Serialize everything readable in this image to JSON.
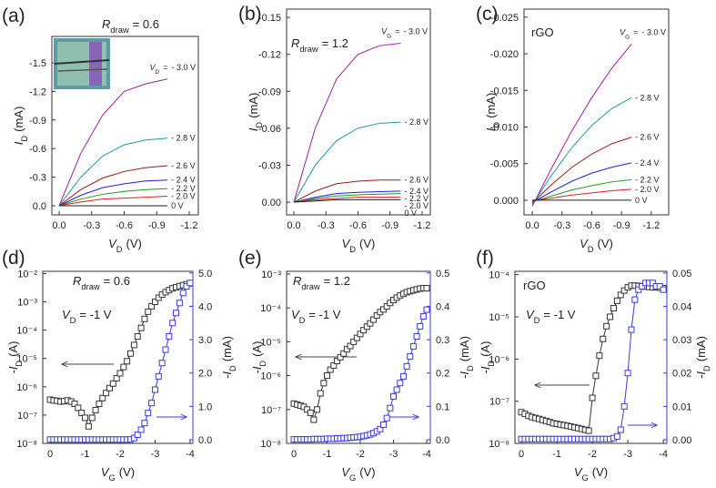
{
  "chart_data": [
    {
      "type": "line",
      "panel_label": "(a)",
      "x_label": {
        "symbol": "V",
        "sub": "D",
        "unit": "(V)"
      },
      "y_label": {
        "symbol": "I",
        "sub": "D",
        "unit": "(mA)"
      },
      "xlim": [
        0.067,
        -1.284
      ],
      "ylim": [
        0.0955,
        -1.777
      ],
      "xticks": [
        {
          "value": 0,
          "label": "0.0"
        },
        -0.3,
        -0.6,
        -0.9,
        -1.2
      ],
      "yticks": [
        {
          "value": 0,
          "label": "0.0"
        },
        -0.3,
        -0.6,
        -0.9,
        -1.2,
        -1.5
      ],
      "annotations": [
        {
          "symbol": "R",
          "sub": "draw",
          "rest": "= 0.6"
        }
      ],
      "curve_label_prefix": {
        "symbol": "V",
        "sub": "D",
        "rest": "="
      },
      "x": [
        0,
        -0.2,
        -0.4,
        -0.6,
        -0.8,
        -1
      ],
      "series": [
        {
          "name": "- 3.0 V",
          "color": "#a21ca2",
          "values": [
            0,
            -0.55,
            -0.95,
            -1.2,
            -1.28,
            -1.33
          ]
        },
        {
          "name": "- 2.8 V",
          "color": "#1f9aa8",
          "values": [
            0,
            -0.3,
            -0.52,
            -0.64,
            -0.69,
            -0.71
          ]
        },
        {
          "name": "- 2.6 V",
          "color": "#a01818",
          "values": [
            0,
            -0.17,
            -0.29,
            -0.36,
            -0.4,
            -0.42
          ]
        },
        {
          "name": "- 2.4 V",
          "color": "#1f1fe0",
          "values": [
            0,
            -0.11,
            -0.19,
            -0.23,
            -0.26,
            -0.27
          ]
        },
        {
          "name": "- 2.2 V",
          "color": "#1a9a1a",
          "values": [
            0,
            -0.07,
            -0.12,
            -0.15,
            -0.17,
            -0.18
          ]
        },
        {
          "name": "- 2.0 V",
          "color": "#e02020",
          "values": [
            0,
            -0.04,
            -0.07,
            -0.08,
            -0.09,
            -0.1
          ]
        },
        {
          "name": "0 V",
          "color": "#222222",
          "values": [
            0,
            0,
            0,
            0,
            0,
            0
          ]
        }
      ]
    },
    {
      "type": "line",
      "panel_label": "(b)",
      "x_label": {
        "symbol": "V",
        "sub": "D",
        "unit": "(V)"
      },
      "y_label": {
        "symbol": "I",
        "sub": "D",
        "unit": "(mA)"
      },
      "xlim": [
        0.068,
        -1.277
      ],
      "ylim": [
        0.0103,
        -0.1567
      ],
      "xticks": [
        {
          "value": 0,
          "label": "0.0"
        },
        -0.3,
        -0.6,
        -0.9,
        -1.2
      ],
      "yticks": [
        {
          "value": 0,
          "label": "0.00"
        },
        -0.03,
        -0.06,
        -0.09,
        -0.12,
        -0.15
      ],
      "annotations": [
        {
          "symbol": "R",
          "sub": "draw",
          "rest": "= 1.2"
        }
      ],
      "curve_label_prefix": {
        "symbol": "V",
        "sub": "G",
        "rest": "="
      },
      "x": [
        0,
        -0.2,
        -0.4,
        -0.6,
        -0.8,
        -1
      ],
      "series": [
        {
          "name": "- 3.0 V",
          "color": "#a21ca2",
          "values": [
            0,
            -0.06,
            -0.1,
            -0.12,
            -0.127,
            -0.129
          ]
        },
        {
          "name": "- 2.8 V",
          "color": "#1f9aa8",
          "values": [
            0,
            -0.03,
            -0.05,
            -0.06,
            -0.064,
            -0.065
          ]
        },
        {
          "name": "- 2.6 V",
          "color": "#a01818",
          "values": [
            0,
            -0.009,
            -0.015,
            -0.017,
            -0.018,
            -0.018
          ]
        },
        {
          "name": "- 2.4 V",
          "color": "#1f1fe0",
          "values": [
            0,
            -0.004,
            -0.007,
            -0.008,
            -0.0085,
            -0.009
          ]
        },
        {
          "name": "- 2.2 V",
          "color": "#1a9a1a",
          "values": [
            0,
            -0.003,
            -0.005,
            -0.006,
            -0.0065,
            -0.007
          ]
        },
        {
          "name": "- 2.0 V",
          "color": "#e02020",
          "values": [
            0,
            -0.002,
            -0.003,
            -0.004,
            -0.004,
            -0.004
          ]
        },
        {
          "name": "0 V",
          "color": "#222222",
          "values": [
            0,
            -0.001,
            -0.002,
            -0.002,
            -0.002,
            -0.002
          ]
        }
      ]
    },
    {
      "type": "line",
      "panel_label": "(c)",
      "x_label": {
        "symbol": "V",
        "sub": "D",
        "unit": "(V)"
      },
      "y_label": {
        "symbol": "I",
        "sub": "D",
        "unit": "(mA)"
      },
      "xlim": [
        0.083,
        -1.376
      ],
      "ylim": [
        0.002,
        -0.0261
      ],
      "xticks": [
        {
          "value": 0,
          "label": "0.0"
        },
        -0.3,
        -0.6,
        -0.9,
        -1.2
      ],
      "yticks": [
        {
          "value": 0,
          "label": "0.000"
        },
        -0.005,
        {
          "value": -0.01,
          "label": "-0.010"
        },
        -0.015,
        {
          "value": -0.02,
          "label": "-0.020"
        },
        -0.025
      ],
      "annotations": [
        "rGO"
      ],
      "curve_label_prefix": {
        "symbol": "V",
        "sub": "G",
        "rest": "="
      },
      "x": [
        0,
        -0.2,
        -0.4,
        -0.6,
        -0.8,
        -1
      ],
      "series": [
        {
          "name": "- 3.0 V",
          "color": "#a21ca2",
          "values": [
            0.0008,
            -0.0045,
            -0.0095,
            -0.014,
            -0.018,
            -0.0213
          ]
        },
        {
          "name": "- 2.8 V",
          "color": "#1f9aa8",
          "values": [
            0.0006,
            -0.0035,
            -0.0072,
            -0.0102,
            -0.0125,
            -0.014
          ]
        },
        {
          "name": "- 2.6 V",
          "color": "#a01818",
          "values": [
            0.0004,
            -0.0022,
            -0.0045,
            -0.0063,
            -0.0077,
            -0.0086
          ]
        },
        {
          "name": "- 2.4 V",
          "color": "#1f1fe0",
          "values": [
            0.0003,
            -0.0012,
            -0.0026,
            -0.0037,
            -0.0045,
            -0.0051
          ]
        },
        {
          "name": "- 2.2 V",
          "color": "#1a9a1a",
          "values": [
            0.0002,
            -0.0006,
            -0.0014,
            -0.002,
            -0.0025,
            -0.0028
          ]
        },
        {
          "name": "- 2.0 V",
          "color": "#e02020",
          "values": [
            0.0001,
            -0.0003,
            -0.0007,
            -0.001,
            -0.0013,
            -0.0015
          ]
        },
        {
          "name": "0 V",
          "color": "#222222",
          "values": [
            0,
            0,
            0,
            0,
            0,
            0
          ]
        }
      ]
    },
    {
      "type": "line",
      "panel_label": "(d)",
      "yscale": "log",
      "x_label": {
        "symbol": "V",
        "sub": "G",
        "unit": "(V)"
      },
      "y_label": {
        "symbol": "-I",
        "sub": "D",
        "unit": "(A)"
      },
      "y2_label": {
        "symbol": "-I",
        "sub": "D",
        "unit": "(mA)"
      },
      "y2_color": "#3a3ae6",
      "xlim": [
        0.21,
        -4.08
      ],
      "ylim": [
        1e-08,
        0.012
      ],
      "y2lim": [
        -0.11,
        5.05
      ],
      "xticks": [
        0,
        -1,
        -2,
        -3,
        -4
      ],
      "yticks": [
        {
          "value": 1e-08,
          "label": "10⁻⁸"
        },
        {
          "value": 1e-07,
          "label": "10⁻⁷"
        },
        {
          "value": 1e-06,
          "label": "10⁻⁶"
        },
        {
          "value": 1e-05,
          "label": "10⁻⁵"
        },
        {
          "value": 0.0001,
          "label": "10⁻⁴"
        },
        {
          "value": 0.001,
          "label": "10⁻³"
        },
        {
          "value": 0.01,
          "label": "10⁻²"
        }
      ],
      "y2ticks": [
        {
          "value": 0,
          "label": "0.0"
        },
        {
          "value": 1,
          "label": "1.0"
        },
        {
          "value": 2,
          "label": "2.0"
        },
        {
          "value": 3,
          "label": "3.0"
        },
        {
          "value": 4,
          "label": "4.0"
        },
        {
          "value": 5,
          "label": "5.0"
        }
      ],
      "annotations": [
        {
          "symbol": "R",
          "sub": "draw",
          "rest": "= 0.6"
        },
        {
          "symbol": "V",
          "sub": "D",
          "rest": "= -1 V"
        }
      ],
      "x": [
        0,
        -0.1,
        -0.2,
        -0.3,
        -0.4,
        -0.5,
        -0.6,
        -0.7,
        -0.8,
        -0.9,
        -1,
        -1.1,
        -1.2,
        -1.3,
        -1.4,
        -1.5,
        -1.6,
        -1.7,
        -1.8,
        -1.9,
        -2,
        -2.1,
        -2.2,
        -2.3,
        -2.4,
        -2.5,
        -2.6,
        -2.7,
        -2.8,
        -2.9,
        -3,
        -3.1,
        -3.2,
        -3.3,
        -3.4,
        -3.5,
        -3.6,
        -3.7,
        -3.8,
        -3.9,
        -4
      ],
      "series": [
        {
          "color": "#333333",
          "marker": "square",
          "values": [
            3.5e-07,
            3.3e-07,
            3.2e-07,
            3e-07,
            3.1e-07,
            3.3e-07,
            3e-07,
            2.5e-07,
            1.8e-07,
            1.2e-07,
            8e-08,
            4e-08,
            8e-08,
            1.5e-07,
            2.5e-07,
            4e-07,
            6e-07,
            9e-07,
            1.3e-06,
            2e-06,
            3e-06,
            5e-06,
            8e-06,
            1.5e-05,
            3e-05,
            6e-05,
            0.00012,
            0.00025,
            0.00045,
            0.0007,
            0.001,
            0.0014,
            0.0018,
            0.0022,
            0.0026,
            0.003,
            0.0033,
            0.0036,
            0.0039,
            0.0042,
            0.0045
          ]
        },
        {
          "color": "#3a3ae6",
          "marker": "square",
          "axis": "y2",
          "values": [
            0.005,
            0.005,
            0.005,
            0.005,
            0.005,
            0.005,
            0.005,
            0.005,
            0.005,
            0.005,
            0.005,
            0.005,
            0.005,
            0.005,
            0.005,
            0.005,
            0.005,
            0.005,
            0.005,
            0.005,
            0.005,
            0.005,
            0.005,
            0.01,
            0.05,
            0.15,
            0.3,
            0.5,
            0.8,
            1.1,
            1.5,
            1.9,
            2.3,
            2.7,
            3.1,
            3.5,
            3.8,
            4.1,
            4.4,
            4.6,
            4.7
          ]
        }
      ]
    },
    {
      "type": "line",
      "panel_label": "(e)",
      "yscale": "log",
      "x_label": {
        "symbol": "V",
        "sub": "G",
        "unit": "(V)"
      },
      "y_label": {
        "symbol": "-I",
        "sub": "D",
        "unit": "(A)"
      },
      "y2_label": {
        "symbol": "-I",
        "sub": "D",
        "unit": "(mA)"
      },
      "y2_color": "#3a3ae6",
      "xlim": [
        0.22,
        -4.11
      ],
      "ylim": [
        1e-08,
        0.0012
      ],
      "y2lim": [
        -0.011,
        0.505
      ],
      "xticks": [
        0,
        -1,
        -2,
        -3,
        -4
      ],
      "yticks": [
        {
          "value": 1e-08,
          "label": "10⁻⁸"
        },
        {
          "value": 1e-07,
          "label": "10⁻⁷"
        },
        {
          "value": 1e-06,
          "label": "10⁻⁶"
        },
        {
          "value": 1e-05,
          "label": "10⁻⁵"
        },
        {
          "value": 0.0001,
          "label": "10⁻⁴"
        },
        {
          "value": 0.001,
          "label": "10⁻³"
        }
      ],
      "y2ticks": [
        {
          "value": 0,
          "label": "0.0"
        },
        0.1,
        0.2,
        0.3,
        0.4,
        0.5
      ],
      "annotations": [
        {
          "symbol": "R",
          "sub": "draw",
          "rest": "= 1.2"
        },
        {
          "symbol": "V",
          "sub": "D",
          "rest": "= -1 V"
        }
      ],
      "x": [
        0,
        -0.1,
        -0.2,
        -0.3,
        -0.4,
        -0.5,
        -0.6,
        -0.7,
        -0.8,
        -0.9,
        -1,
        -1.1,
        -1.2,
        -1.3,
        -1.4,
        -1.5,
        -1.6,
        -1.7,
        -1.8,
        -1.9,
        -2,
        -2.1,
        -2.2,
        -2.3,
        -2.4,
        -2.5,
        -2.6,
        -2.7,
        -2.8,
        -2.9,
        -3,
        -3.1,
        -3.2,
        -3.3,
        -3.4,
        -3.5,
        -3.6,
        -3.7,
        -3.8,
        -3.9,
        -4
      ],
      "series": [
        {
          "color": "#333333",
          "marker": "square",
          "values": [
            1.5e-07,
            1.4e-07,
            1.3e-07,
            1.2e-07,
            1e-07,
            8e-08,
            5e-08,
            1e-07,
            3e-07,
            6e-07,
            1e-06,
            1.5e-06,
            2e-06,
            2.7e-06,
            3.5e-06,
            4.5e-06,
            6e-06,
            7.5e-06,
            1e-05,
            1.3e-05,
            1.7e-05,
            2.2e-05,
            2.8e-05,
            3.5e-05,
            4.5e-05,
            6e-05,
            7.5e-05,
            9e-05,
            0.00011,
            0.00014,
            0.00017,
            0.0002,
            0.00023,
            0.00026,
            0.00029,
            0.00031,
            0.00033,
            0.00035,
            0.00037,
            0.00038,
            0.00038
          ]
        },
        {
          "color": "#3a3ae6",
          "marker": "square",
          "axis": "y2",
          "values": [
            0.001,
            0.001,
            0.001,
            0.001,
            0.001,
            0.001,
            0.002,
            0.002,
            0.002,
            0.002,
            0.003,
            0.003,
            0.003,
            0.004,
            0.004,
            0.005,
            0.005,
            0.006,
            0.007,
            0.008,
            0.009,
            0.011,
            0.013,
            0.016,
            0.02,
            0.025,
            0.032,
            0.045,
            0.065,
            0.095,
            0.13,
            0.15,
            0.17,
            0.19,
            0.22,
            0.25,
            0.28,
            0.31,
            0.34,
            0.37,
            0.39
          ]
        }
      ]
    },
    {
      "type": "line",
      "panel_label": "(f)",
      "yscale": "log",
      "x_label": {
        "symbol": "V",
        "sub": "G",
        "unit": "(V)"
      },
      "y_label": {
        "symbol": "-I",
        "sub": "D",
        "unit": "(A)"
      },
      "y2_label": {
        "symbol": "-I",
        "sub": "D",
        "unit": "(mA)"
      },
      "y2_color": "#3a3ae6",
      "xlim": [
        0.18,
        -4.1
      ],
      "ylim": [
        1e-08,
        0.00012
      ],
      "y2lim": [
        -0.0011,
        0.0505
      ],
      "xticks": [
        0,
        -1,
        -2,
        -3,
        -4
      ],
      "yticks": [
        {
          "value": 1e-08,
          "label": "10⁻⁸"
        },
        {
          "value": 1e-07,
          "label": "10⁻⁷"
        },
        {
          "value": 1e-06,
          "label": "10⁻⁶"
        },
        {
          "value": 1e-05,
          "label": "10⁻⁵"
        },
        {
          "value": 0.0001,
          "label": "10⁻⁴"
        }
      ],
      "y2ticks": [
        {
          "value": 0,
          "label": "0.00"
        },
        0.01,
        0.02,
        0.03,
        0.04,
        0.05
      ],
      "annotations": [
        "rGO",
        {
          "symbol": "V",
          "sub": "D",
          "rest": "= -1 V"
        }
      ],
      "x": [
        0,
        -0.1,
        -0.2,
        -0.3,
        -0.4,
        -0.5,
        -0.6,
        -0.7,
        -0.8,
        -0.9,
        -1,
        -1.1,
        -1.2,
        -1.3,
        -1.4,
        -1.5,
        -1.6,
        -1.7,
        -1.8,
        -1.9,
        -2,
        -2.1,
        -2.2,
        -2.3,
        -2.4,
        -2.5,
        -2.6,
        -2.7,
        -2.8,
        -2.9,
        -3,
        -3.1,
        -3.2,
        -3.3,
        -3.4,
        -3.5,
        -3.6,
        -3.7,
        -3.8,
        -3.9,
        -4
      ],
      "series": [
        {
          "color": "#333333",
          "marker": "square",
          "values": [
            5.5e-08,
            5e-08,
            4.5e-08,
            4.2e-08,
            4e-08,
            3.8e-08,
            3.6e-08,
            3.4e-08,
            3.2e-08,
            3e-08,
            2.9e-08,
            2.8e-08,
            2.7e-08,
            2.6e-08,
            2.5e-08,
            2.4e-08,
            2.3e-08,
            2.2e-08,
            2.1e-08,
            2e-08,
            1.2e-07,
            4e-07,
            1.2e-06,
            3e-06,
            6e-06,
            1e-05,
            1.6e-05,
            2.4e-05,
            3.3e-05,
            4.2e-05,
            5e-05,
            5.5e-05,
            5.5e-05,
            5.4e-05,
            5.3e-05,
            5.2e-05,
            5.1e-05,
            5e-05,
            5e-05,
            4.9e-05,
            4.8e-05
          ]
        },
        {
          "color": "#3a3ae6",
          "marker": "square",
          "axis": "y2",
          "values": [
            0.0002,
            0.0002,
            0.0002,
            0.0002,
            0.0002,
            0.0002,
            0.0002,
            0.0002,
            0.0002,
            0.0002,
            0.0002,
            0.0002,
            0.0002,
            0.0002,
            0.0002,
            0.0002,
            0.0002,
            0.0002,
            0.0002,
            0.0002,
            0.0002,
            0.0002,
            0.0002,
            0.0002,
            0.0002,
            0.0002,
            0.0005,
            0.001,
            0.003,
            0.01,
            0.02,
            0.033,
            0.042,
            0.045,
            0.046,
            0.047,
            0.047,
            0.047,
            0.046,
            0.046,
            0.045
          ]
        }
      ]
    }
  ]
}
